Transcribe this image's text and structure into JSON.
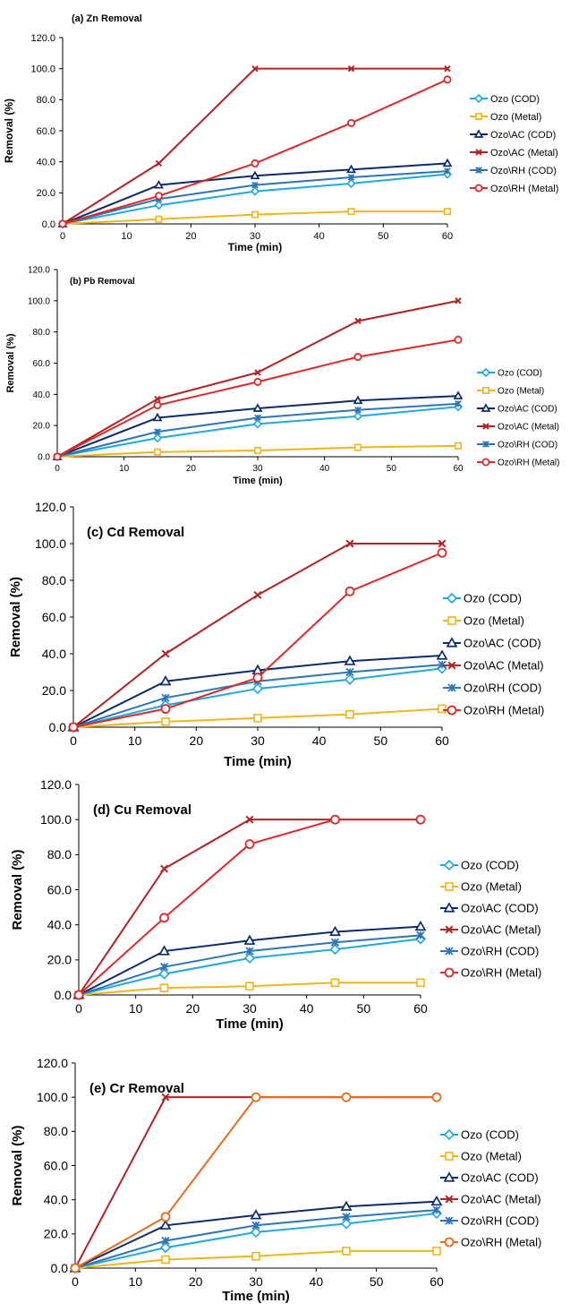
{
  "chart_data": [
    {
      "type": "line",
      "title": "(a) Zn Removal",
      "xlabel": "Time (min)",
      "ylabel": "Removal (%)",
      "x": [
        0,
        15,
        30,
        45,
        60
      ],
      "xlim": [
        0,
        60
      ],
      "ylim": [
        0,
        120
      ],
      "x_ticks": [
        "0",
        "10",
        "20",
        "30",
        "40",
        "50",
        "60"
      ],
      "y_ticks": [
        "0.0",
        "20.0",
        "40.0",
        "60.0",
        "80.0",
        "100.0",
        "120.0"
      ],
      "grid": false,
      "legend_position": "right",
      "series": [
        {
          "name": "Ozo (COD)",
          "values": [
            0,
            12,
            21,
            26,
            32
          ],
          "color": "#1ea7e1",
          "marker": "diamond"
        },
        {
          "name": "Ozo (Metal)",
          "values": [
            0,
            3,
            6,
            8,
            8
          ],
          "color": "#f0b41c",
          "marker": "square"
        },
        {
          "name": "Ozo\\AC (COD)",
          "values": [
            0,
            25,
            31,
            35,
            39
          ],
          "color": "#0d2a6b",
          "marker": "triangle"
        },
        {
          "name": "Ozo\\AC (Metal)",
          "values": [
            0,
            39,
            100,
            100,
            100
          ],
          "color": "#b22222",
          "marker": "x"
        },
        {
          "name": "Ozo\\RH (COD)",
          "values": [
            0,
            16,
            25,
            30,
            34
          ],
          "color": "#2e75b6",
          "marker": "star"
        },
        {
          "name": "Ozo\\RH (Metal)",
          "values": [
            0,
            18,
            39,
            65,
            93
          ],
          "color": "#e02828",
          "marker": "circle"
        }
      ]
    },
    {
      "type": "line",
      "title": "(b) Pb Removal",
      "xlabel": "Time (min)",
      "ylabel": "Removal (%)",
      "x": [
        0,
        15,
        30,
        45,
        60
      ],
      "xlim": [
        0,
        60
      ],
      "ylim": [
        0,
        120
      ],
      "x_ticks": [
        "0",
        "10",
        "20",
        "30",
        "40",
        "50",
        "60"
      ],
      "y_ticks": [
        "0.0",
        "20.0",
        "40.0",
        "60.0",
        "80.0",
        "100.0",
        "120.0"
      ],
      "grid": false,
      "legend_position": "right",
      "series": [
        {
          "name": "Ozo (COD)",
          "values": [
            0,
            12,
            21,
            26,
            32
          ],
          "color": "#1ea7e1",
          "marker": "diamond"
        },
        {
          "name": "Ozo (Metal)",
          "values": [
            0,
            3,
            4,
            6,
            7
          ],
          "color": "#f0b41c",
          "marker": "square"
        },
        {
          "name": "Ozo\\AC (COD)",
          "values": [
            0,
            25,
            31,
            36,
            39
          ],
          "color": "#0d2a6b",
          "marker": "triangle"
        },
        {
          "name": "Ozo\\AC (Metal)",
          "values": [
            0,
            37,
            54,
            87,
            100
          ],
          "color": "#b22222",
          "marker": "x"
        },
        {
          "name": "Ozo\\RH (COD)",
          "values": [
            0,
            16,
            25,
            30,
            34
          ],
          "color": "#2e75b6",
          "marker": "star"
        },
        {
          "name": "Ozo\\RH (Metal)",
          "values": [
            0,
            33,
            48,
            64,
            75
          ],
          "color": "#e02828",
          "marker": "circle"
        }
      ]
    },
    {
      "type": "line",
      "title": "(c) Cd Removal",
      "xlabel": "Time (min)",
      "ylabel": "Removal (%)",
      "x": [
        0,
        15,
        30,
        45,
        60
      ],
      "xlim": [
        0,
        60
      ],
      "ylim": [
        0,
        120
      ],
      "x_ticks": [
        "0",
        "10",
        "20",
        "30",
        "40",
        "50",
        "60"
      ],
      "y_ticks": [
        "0.0",
        "20.0",
        "40.0",
        "60.0",
        "80.0",
        "100.0",
        "120.0"
      ],
      "grid": false,
      "legend_position": "right",
      "series": [
        {
          "name": "Ozo (COD)",
          "values": [
            0,
            12,
            21,
            26,
            32
          ],
          "color": "#1ea7e1",
          "marker": "diamond"
        },
        {
          "name": "Ozo (Metal)",
          "values": [
            0,
            3,
            5,
            7,
            10
          ],
          "color": "#f0b41c",
          "marker": "square"
        },
        {
          "name": "Ozo\\AC (COD)",
          "values": [
            0,
            25,
            31,
            36,
            39
          ],
          "color": "#0d2a6b",
          "marker": "triangle"
        },
        {
          "name": "Ozo\\AC (Metal)",
          "values": [
            0,
            40,
            72,
            100,
            100
          ],
          "color": "#b22222",
          "marker": "x"
        },
        {
          "name": "Ozo\\RH (COD)",
          "values": [
            0,
            16,
            25,
            30,
            34
          ],
          "color": "#2e75b6",
          "marker": "star"
        },
        {
          "name": "Ozo\\RH (Metal)",
          "values": [
            0,
            10,
            27,
            74,
            95
          ],
          "color": "#e02828",
          "marker": "circle"
        }
      ]
    },
    {
      "type": "line",
      "title": "(d) Cu Removal",
      "xlabel": "Time (min)",
      "ylabel": "Removal (%)",
      "x": [
        0,
        15,
        30,
        45,
        60
      ],
      "xlim": [
        0,
        60
      ],
      "ylim": [
        0,
        120
      ],
      "x_ticks": [
        "0",
        "10",
        "20",
        "30",
        "40",
        "50",
        "60"
      ],
      "y_ticks": [
        "0.0",
        "20.0",
        "40.0",
        "60.0",
        "80.0",
        "100.0",
        "120.0"
      ],
      "grid": false,
      "legend_position": "right",
      "series": [
        {
          "name": "Ozo (COD)",
          "values": [
            0,
            12,
            21,
            26,
            32
          ],
          "color": "#1ea7e1",
          "marker": "diamond"
        },
        {
          "name": "Ozo (Metal)",
          "values": [
            0,
            4,
            5,
            7,
            7
          ],
          "color": "#f0b41c",
          "marker": "square"
        },
        {
          "name": "Ozo\\AC (COD)",
          "values": [
            0,
            25,
            31,
            36,
            39
          ],
          "color": "#0d2a6b",
          "marker": "triangle"
        },
        {
          "name": "Ozo\\AC (Metal)",
          "values": [
            0,
            72,
            100,
            100,
            100
          ],
          "color": "#b22222",
          "marker": "x"
        },
        {
          "name": "Ozo\\RH (COD)",
          "values": [
            0,
            16,
            25,
            30,
            34
          ],
          "color": "#2e75b6",
          "marker": "star"
        },
        {
          "name": "Ozo\\RH (Metal)",
          "values": [
            0,
            44,
            86,
            100,
            100
          ],
          "color": "#e02828",
          "marker": "circle"
        }
      ]
    },
    {
      "type": "line",
      "title": "(e) Cr Removal",
      "xlabel": "Time (min)",
      "ylabel": "Removal (%)",
      "x": [
        0,
        15,
        30,
        45,
        60
      ],
      "xlim": [
        0,
        60
      ],
      "ylim": [
        0,
        120
      ],
      "x_ticks": [
        "0",
        "10",
        "20",
        "30",
        "40",
        "50",
        "60"
      ],
      "y_ticks": [
        "0.0",
        "20.0",
        "40.0",
        "60.0",
        "80.0",
        "100.0",
        "120.0"
      ],
      "grid": false,
      "legend_position": "right",
      "series": [
        {
          "name": "Ozo (COD)",
          "values": [
            0,
            12,
            21,
            26,
            32
          ],
          "color": "#1ea7e1",
          "marker": "diamond"
        },
        {
          "name": "Ozo (Metal)",
          "values": [
            0,
            5,
            7,
            10,
            10
          ],
          "color": "#f0b41c",
          "marker": "square"
        },
        {
          "name": "Ozo\\AC (COD)",
          "values": [
            0,
            25,
            31,
            36,
            39
          ],
          "color": "#0d2a6b",
          "marker": "triangle"
        },
        {
          "name": "Ozo\\AC (Metal)",
          "values": [
            0,
            100,
            100,
            100,
            100
          ],
          "color": "#b22222",
          "marker": "x"
        },
        {
          "name": "Ozo\\RH (COD)",
          "values": [
            0,
            16,
            25,
            30,
            34
          ],
          "color": "#2e75b6",
          "marker": "star"
        },
        {
          "name": "Ozo\\RH (Metal)",
          "values": [
            0,
            30,
            100,
            100,
            100
          ],
          "color": "#e86a1a",
          "marker": "circle"
        }
      ]
    }
  ]
}
